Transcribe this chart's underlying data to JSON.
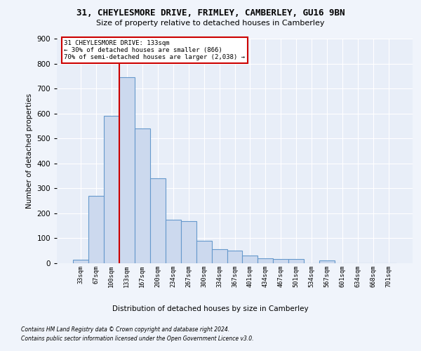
{
  "title1": "31, CHEYLESMORE DRIVE, FRIMLEY, CAMBERLEY, GU16 9BN",
  "title2": "Size of property relative to detached houses in Camberley",
  "xlabel": "Distribution of detached houses by size in Camberley",
  "ylabel": "Number of detached properties",
  "categories": [
    "33sqm",
    "67sqm",
    "100sqm",
    "133sqm",
    "167sqm",
    "200sqm",
    "234sqm",
    "267sqm",
    "300sqm",
    "334sqm",
    "367sqm",
    "401sqm",
    "434sqm",
    "467sqm",
    "501sqm",
    "534sqm",
    "567sqm",
    "601sqm",
    "634sqm",
    "668sqm",
    "701sqm"
  ],
  "values": [
    15,
    270,
    590,
    745,
    540,
    340,
    175,
    170,
    90,
    55,
    50,
    30,
    20,
    18,
    18,
    0,
    10,
    0,
    0,
    0,
    0
  ],
  "bar_color": "#ccd9ee",
  "bar_edge_color": "#6699cc",
  "red_line_index": 3,
  "annotation_line1": "31 CHEYLESMORE DRIVE: 133sqm",
  "annotation_line2": "← 30% of detached houses are smaller (866)",
  "annotation_line3": "70% of semi-detached houses are larger (2,038) →",
  "ylim": [
    0,
    900
  ],
  "yticks": [
    0,
    100,
    200,
    300,
    400,
    500,
    600,
    700,
    800,
    900
  ],
  "footer1": "Contains HM Land Registry data © Crown copyright and database right 2024.",
  "footer2": "Contains public sector information licensed under the Open Government Licence v3.0.",
  "bg_color": "#e8eef8",
  "grid_color": "#ffffff",
  "fig_bg_color": "#f0f4fb",
  "annotation_box_color": "#ffffff",
  "annotation_box_edge": "#cc0000",
  "red_line_color": "#cc0000"
}
